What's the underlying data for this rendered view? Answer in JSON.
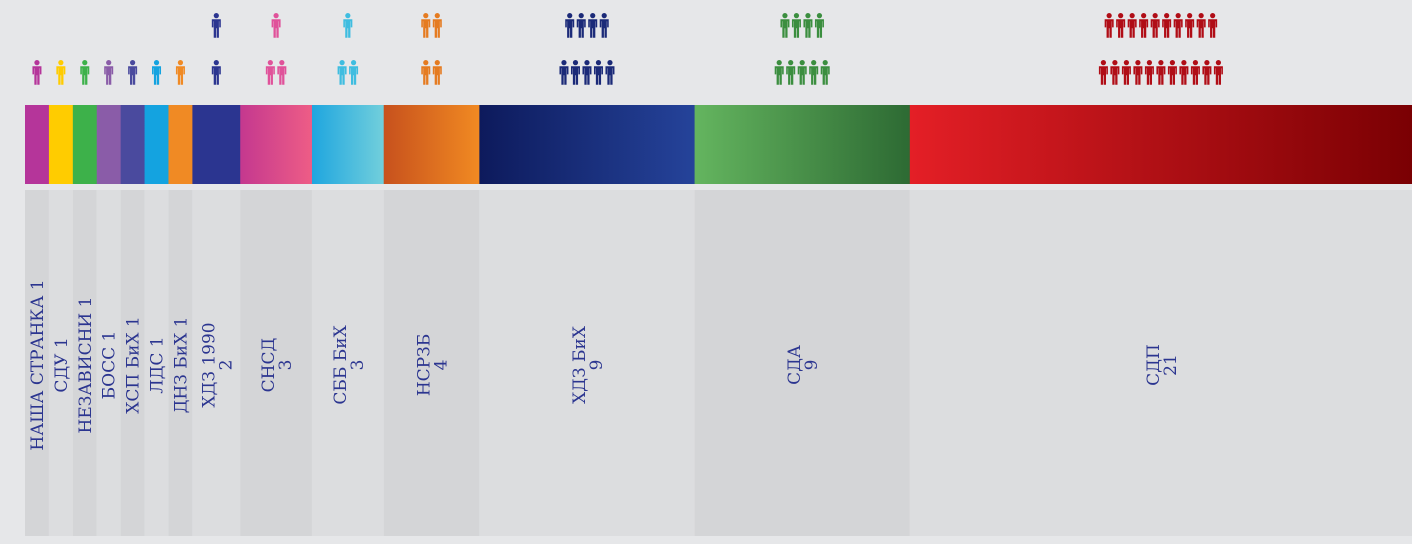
{
  "chart_data": {
    "type": "bar",
    "description_unit": "seats",
    "categories": [
      "НАША СТРАНКА",
      "СДУ",
      "НЕЗАВИСНИ",
      "БОСС",
      "ХСП БиХ",
      "ЛДС",
      "ДНЗ БиХ",
      "ХДЗ 1990",
      "СНСД",
      "СББ БиХ",
      "НСРЗБ",
      "ХДЗ БиХ",
      "СДА",
      "СДП"
    ],
    "values": [
      1,
      1,
      1,
      1,
      1,
      1,
      1,
      2,
      3,
      3,
      4,
      9,
      9,
      21
    ],
    "labels": [
      {
        "name": "НАША СТРАНКА",
        "seats": "1",
        "inline": true
      },
      {
        "name": "СДУ",
        "seats": "1",
        "inline": true
      },
      {
        "name": "НЕЗАВИСНИ",
        "seats": "1",
        "inline": true
      },
      {
        "name": "БОСС",
        "seats": "1",
        "inline": true
      },
      {
        "name": "ХСП БиХ",
        "seats": "1",
        "inline": true
      },
      {
        "name": "ЛДС",
        "seats": "1",
        "inline": true
      },
      {
        "name": "ДНЗ БиХ",
        "seats": "1",
        "inline": true
      },
      {
        "name": "ХДЗ 1990",
        "seats": "2",
        "inline": false
      },
      {
        "name": "СНСД",
        "seats": "3",
        "inline": false
      },
      {
        "name": "СББ БиХ",
        "seats": "3",
        "inline": false
      },
      {
        "name": "НСРЗБ",
        "seats": "4",
        "inline": false
      },
      {
        "name": "ХДЗ БиХ",
        "seats": "9",
        "inline": false
      },
      {
        "name": "СДА",
        "seats": "9",
        "inline": false
      },
      {
        "name": "СДП",
        "seats": "21",
        "inline": false
      }
    ],
    "colors": [
      [
        "#b5359a",
        "#b5359a"
      ],
      [
        "#ffcc00",
        "#ffcc00"
      ],
      [
        "#3db14a",
        "#3db14a"
      ],
      [
        "#8a5ca8",
        "#8a5ca8"
      ],
      [
        "#4a4a9e",
        "#4a4a9e"
      ],
      [
        "#14a3e0",
        "#14a3e0"
      ],
      [
        "#f08a24",
        "#f08a24"
      ],
      [
        "#2b3590",
        "#2b3590"
      ],
      [
        "#c4388f",
        "#ee5d86"
      ],
      [
        "#1fa6df",
        "#72cfdc"
      ],
      [
        "#c7511d",
        "#f18a22"
      ],
      [
        "#0d1a5c",
        "#25439a"
      ],
      [
        "#64b55f",
        "#2d6a33"
      ],
      [
        "#e41f26",
        "#7a0003"
      ]
    ],
    "icon_colors": [
      "#b5359a",
      "#ffcc00",
      "#3db14a",
      "#8a5ca8",
      "#4a4a9e",
      "#14a3e0",
      "#f08a24",
      "#2b3590",
      "#e0529a",
      "#3fbde0",
      "#e57b20",
      "#1b2a78",
      "#3b8e3f",
      "#b00d16"
    ],
    "text_color": "#2b3590",
    "icon": "person-icon"
  }
}
